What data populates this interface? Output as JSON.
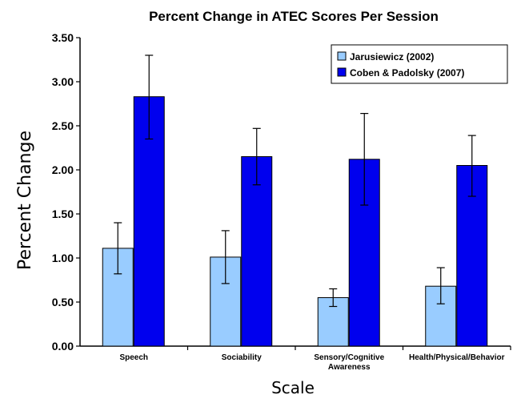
{
  "chart_data": {
    "type": "bar",
    "title": "Percent Change in ATEC Scores Per Session",
    "xlabel": "Scale",
    "ylabel": "Percent Change",
    "categories": [
      [
        "Speech"
      ],
      [
        "Sociability"
      ],
      [
        "Sensory/Cognitive",
        "Awareness"
      ],
      [
        "Health/Physical/Behavior"
      ]
    ],
    "series": [
      {
        "name": "Jarusiewicz (2002)",
        "color": "#99ccff",
        "values": [
          1.11,
          1.01,
          0.55,
          0.68
        ],
        "error_low": [
          0.82,
          0.71,
          0.45,
          0.48
        ],
        "error_high": [
          1.4,
          1.31,
          0.65,
          0.89
        ]
      },
      {
        "name": "Coben & Padolsky (2007)",
        "color": "#0000ee",
        "values": [
          2.83,
          2.15,
          2.12,
          2.05
        ],
        "error_low": [
          2.35,
          1.83,
          1.6,
          1.7
        ],
        "error_high": [
          3.3,
          2.47,
          2.64,
          2.39
        ]
      }
    ],
    "ylim": [
      0,
      3.5
    ],
    "yticks": [
      "0.00",
      "0.50",
      "1.00",
      "1.50",
      "2.00",
      "2.50",
      "3.00",
      "3.50"
    ],
    "legend_position": "top-right",
    "grid": false
  }
}
